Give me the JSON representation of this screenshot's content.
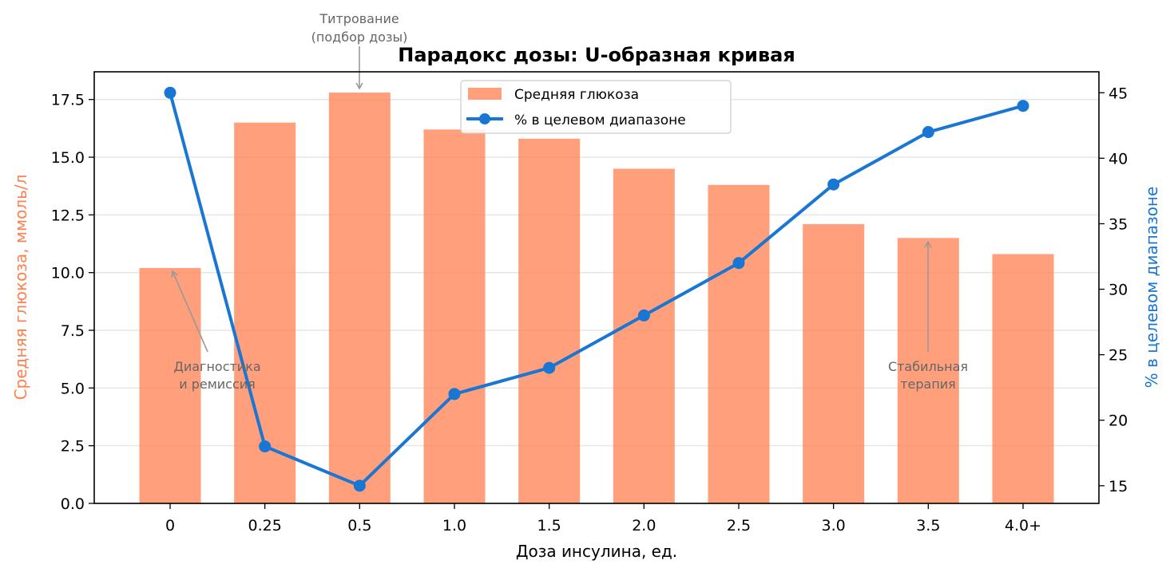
{
  "chart_data": {
    "type": "bar+line",
    "title": "Парадокс дозы: U-образная кривая",
    "xlabel": "Доза инсулина, ед.",
    "ylabel_left": "Средняя глюкоза, ммоль/л",
    "ylabel_right": "% в целевом диапазоне",
    "categories": [
      "0",
      "0.25",
      "0.5",
      "1.0",
      "1.5",
      "2.0",
      "2.5",
      "3.0",
      "3.5",
      "4.0+"
    ],
    "series": [
      {
        "name": "Средняя глюкоза",
        "type": "bar",
        "axis": "left",
        "color": "#ff7f50",
        "values": [
          10.2,
          16.5,
          17.8,
          16.2,
          15.8,
          14.5,
          13.8,
          12.1,
          11.5,
          10.8
        ]
      },
      {
        "name": "% в целевом диапазоне",
        "type": "line",
        "axis": "right",
        "color": "#1976d2",
        "values": [
          45,
          18,
          15,
          22,
          24,
          28,
          32,
          38,
          42,
          44
        ]
      }
    ],
    "ylim_left": [
      0,
      18.7
    ],
    "yticks_left": [
      "0.0",
      "2.5",
      "5.0",
      "7.5",
      "10.0",
      "12.5",
      "15.0",
      "17.5"
    ],
    "ylim_right": [
      13.65,
      46.6
    ],
    "yticks_right": [
      "15",
      "20",
      "25",
      "30",
      "35",
      "40",
      "45"
    ],
    "grid": "y",
    "legend_position": "upper center",
    "annotations": [
      {
        "text": "Титрование\n(подбор дозы)",
        "category": "0.5"
      },
      {
        "text": "Диагностика\nи ремиссия",
        "category": "0"
      },
      {
        "text": "Стабильная\nтерапия",
        "category": "3.5"
      }
    ]
  },
  "colors": {
    "bar": "#ff7f50",
    "line": "#1976d2",
    "left_axis_label": "#ff7f50",
    "right_axis_label": "#1976d2",
    "annotation": "#666666",
    "grid": "#e6e6e6"
  },
  "legend": {
    "bar_label": "Средняя глюкоза",
    "line_label": "% в целевом диапазоне"
  },
  "annotations": {
    "titration_line1": "Титрование",
    "titration_line2": "(подбор дозы)",
    "diagnostics_line1": "Диагностика",
    "diagnostics_line2": "и ремиссия",
    "stable_line1": "Стабильная",
    "stable_line2": "терапия"
  }
}
